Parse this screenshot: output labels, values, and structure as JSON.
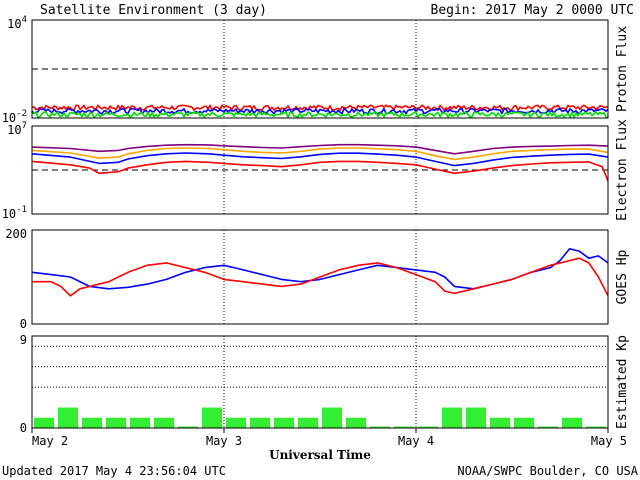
{
  "header": {
    "title": "Satellite Environment (3 day)",
    "begin": "Begin:  2017 May 2 0000 UTC"
  },
  "footer": {
    "updated": "Updated 2017 May  4 23:56:04 UTC",
    "credit": "NOAA/SWPC Boulder, CO USA",
    "xlabel": "Universal Time"
  },
  "x_ticks": [
    "May 2",
    "May 3",
    "May 4",
    "May 5"
  ],
  "chart_data": [
    {
      "type": "line",
      "ylabel": "Proton Flux",
      "yscale": "log",
      "ylim": [
        0.01,
        10000
      ],
      "yticks": [
        {
          "base": "10",
          "exp": "4"
        },
        {
          "base": "10",
          "exp": "-2"
        }
      ],
      "threshold": 10,
      "series": [
        {
          "color": "#ff0000",
          "level": 0.045
        },
        {
          "color": "#0000ff",
          "level": 0.028
        },
        {
          "color": "#00dd00",
          "level": 0.017
        }
      ]
    },
    {
      "type": "line",
      "ylabel": "Electron Flux",
      "yscale": "log",
      "ylim": [
        0.1,
        10000000
      ],
      "yticks": [
        {
          "base": "10",
          "exp": "7"
        },
        {
          "base": "10",
          "exp": "-1"
        }
      ],
      "threshold": 1000,
      "series": [
        {
          "color": "#800080",
          "x": [
            0,
            0.2,
            0.35,
            0.45,
            0.5,
            0.6,
            0.7,
            0.8,
            0.92,
            1.0,
            1.1,
            1.2,
            1.3,
            1.4,
            1.5,
            1.6,
            1.7,
            1.8,
            1.9,
            2.0,
            2.1,
            2.2,
            2.3,
            2.4,
            2.5,
            2.6,
            2.7,
            2.8,
            2.9,
            3.0
          ],
          "y": [
            120000,
            90000,
            50000,
            60000,
            90000,
            140000,
            180000,
            200000,
            190000,
            160000,
            130000,
            110000,
            100000,
            130000,
            170000,
            200000,
            200000,
            180000,
            160000,
            120000,
            60000,
            30000,
            50000,
            90000,
            120000,
            140000,
            150000,
            170000,
            180000,
            150000
          ]
        },
        {
          "color": "#ffa500",
          "x": [
            0,
            0.2,
            0.35,
            0.45,
            0.5,
            0.6,
            0.7,
            0.8,
            0.92,
            1.0,
            1.1,
            1.2,
            1.3,
            1.4,
            1.5,
            1.6,
            1.7,
            1.8,
            1.9,
            2.0,
            2.1,
            2.2,
            2.3,
            2.4,
            2.5,
            2.6,
            2.7,
            2.8,
            2.9,
            3.0
          ],
          "y": [
            60000,
            35000,
            12000,
            15000,
            30000,
            60000,
            90000,
            100000,
            90000,
            70000,
            50000,
            40000,
            35000,
            50000,
            80000,
            100000,
            100000,
            85000,
            70000,
            50000,
            20000,
            9000,
            15000,
            30000,
            50000,
            60000,
            70000,
            80000,
            80000,
            40000
          ]
        },
        {
          "color": "#0000ff",
          "x": [
            0,
            0.2,
            0.35,
            0.45,
            0.5,
            0.6,
            0.7,
            0.8,
            0.92,
            1.0,
            1.1,
            1.2,
            1.3,
            1.4,
            1.5,
            1.6,
            1.7,
            1.8,
            1.9,
            2.0,
            2.1,
            2.2,
            2.3,
            2.4,
            2.5,
            2.6,
            2.7,
            2.8,
            2.9,
            3.0
          ],
          "y": [
            30000,
            15000,
            4000,
            5000,
            10000,
            20000,
            30000,
            35000,
            30000,
            22000,
            16000,
            13000,
            11000,
            16000,
            26000,
            34000,
            34000,
            28000,
            22000,
            15000,
            6000,
            2500,
            4000,
            8000,
            14000,
            18000,
            22000,
            26000,
            28000,
            15000
          ]
        },
        {
          "color": "#ff0000",
          "x": [
            0,
            0.2,
            0.3,
            0.35,
            0.45,
            0.5,
            0.6,
            0.7,
            0.8,
            0.92,
            1.0,
            1.1,
            1.2,
            1.3,
            1.4,
            1.5,
            1.6,
            1.7,
            1.8,
            1.9,
            2.0,
            2.1,
            2.2,
            2.3,
            2.4,
            2.5,
            2.6,
            2.7,
            2.8,
            2.9,
            2.97,
            3.0
          ],
          "y": [
            6000,
            3000,
            1500,
            500,
            700,
            1500,
            3000,
            5000,
            6000,
            5000,
            4000,
            3000,
            2500,
            2000,
            3000,
            5000,
            6000,
            6000,
            5000,
            4000,
            3000,
            1200,
            500,
            800,
            1500,
            2500,
            3500,
            4500,
            5000,
            5500,
            2000,
            100
          ]
        }
      ]
    },
    {
      "type": "line",
      "ylabel": "GOES Hp",
      "yscale": "linear",
      "ylim": [
        0,
        200
      ],
      "yticks": [
        {
          "base": "200",
          "exp": ""
        },
        {
          "base": "0",
          "exp": ""
        }
      ],
      "series": [
        {
          "color": "#0000ff",
          "x": [
            0,
            0.1,
            0.2,
            0.3,
            0.4,
            0.5,
            0.6,
            0.7,
            0.8,
            0.9,
            1.0,
            1.1,
            1.2,
            1.3,
            1.4,
            1.5,
            1.6,
            1.7,
            1.8,
            1.9,
            2.0,
            2.1,
            2.15,
            2.2,
            2.3,
            2.4,
            2.5,
            2.6,
            2.7,
            2.75,
            2.8,
            2.85,
            2.9,
            2.95,
            3.0
          ],
          "y": [
            110,
            105,
            100,
            80,
            75,
            78,
            85,
            95,
            110,
            120,
            125,
            115,
            105,
            95,
            90,
            95,
            105,
            115,
            125,
            120,
            115,
            110,
            100,
            80,
            75,
            85,
            95,
            110,
            120,
            135,
            160,
            155,
            140,
            145,
            130
          ]
        },
        {
          "color": "#ff0000",
          "x": [
            0,
            0.1,
            0.15,
            0.2,
            0.25,
            0.3,
            0.4,
            0.5,
            0.6,
            0.7,
            0.8,
            0.9,
            1.0,
            1.1,
            1.2,
            1.3,
            1.4,
            1.5,
            1.6,
            1.7,
            1.8,
            1.9,
            2.0,
            2.1,
            2.15,
            2.2,
            2.3,
            2.4,
            2.5,
            2.6,
            2.7,
            2.8,
            2.85,
            2.9,
            2.95,
            3.0
          ],
          "y": [
            90,
            90,
            80,
            60,
            75,
            80,
            90,
            110,
            125,
            130,
            120,
            110,
            95,
            90,
            85,
            80,
            85,
            100,
            115,
            125,
            130,
            120,
            105,
            90,
            70,
            65,
            75,
            85,
            95,
            110,
            125,
            135,
            140,
            130,
            100,
            60
          ]
        }
      ]
    },
    {
      "type": "bar",
      "ylabel": "Estimated Kp",
      "ylim": [
        0,
        9
      ],
      "yticks": [
        {
          "base": "9",
          "exp": ""
        },
        {
          "base": "0",
          "exp": ""
        }
      ],
      "gridlines": [
        4,
        6,
        8
      ],
      "bar_color": "#33ee33",
      "values": [
        1,
        2,
        1,
        1,
        1,
        1,
        0,
        2,
        1,
        1,
        1,
        1,
        2,
        1,
        0,
        0,
        0,
        2,
        2,
        1,
        1,
        0,
        1,
        0
      ]
    }
  ]
}
